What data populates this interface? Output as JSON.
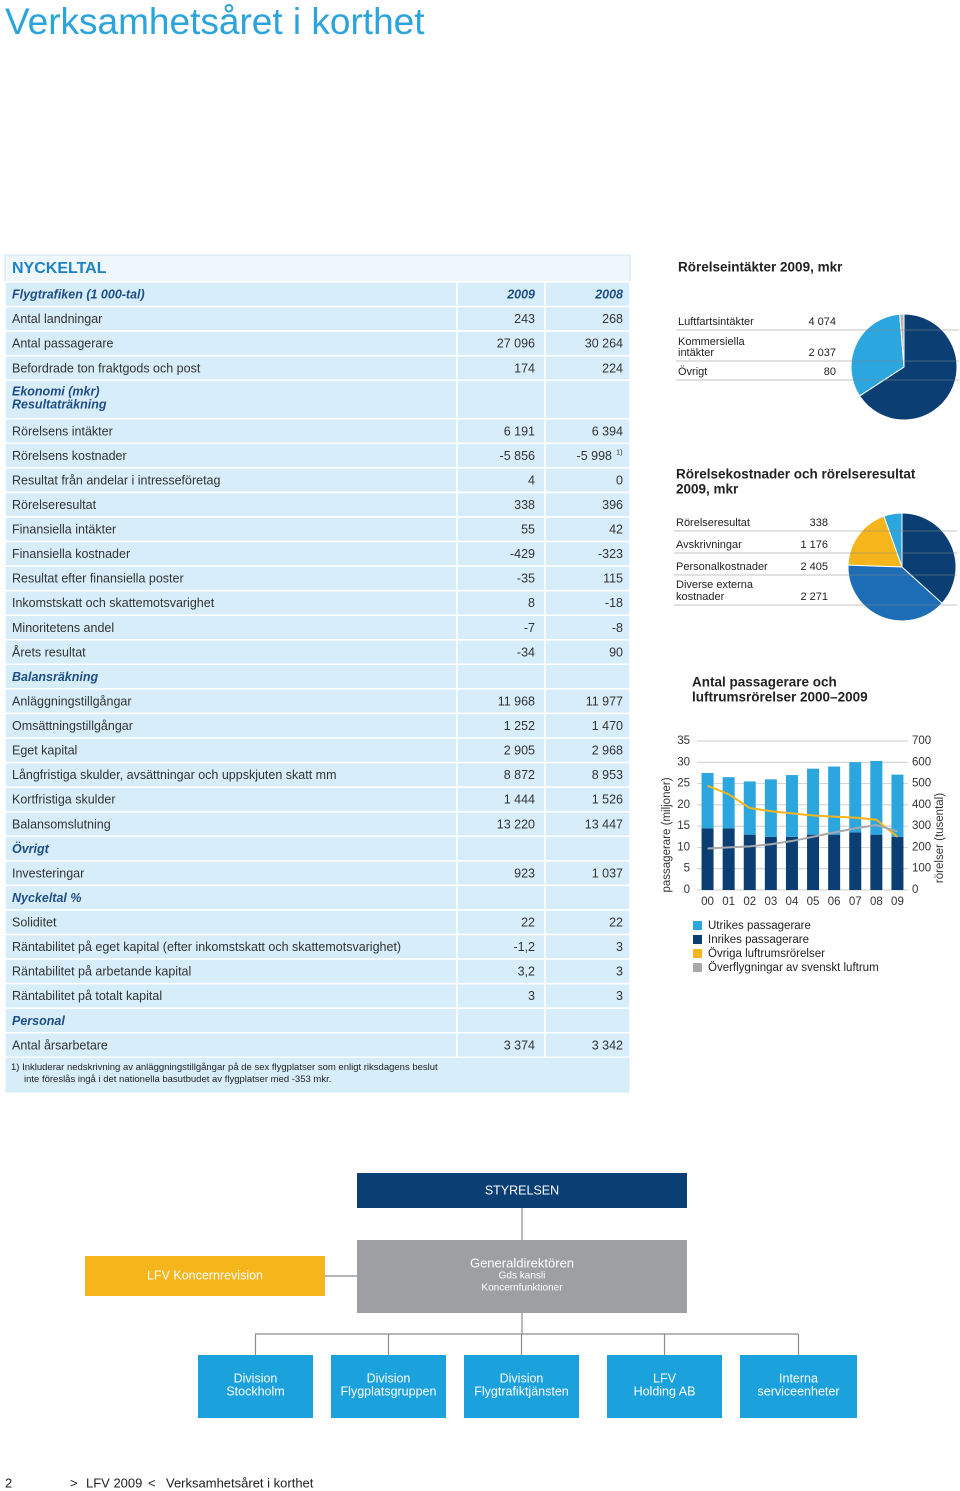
{
  "header": {
    "title": "Verksamhetsåret i korthet"
  },
  "table": {
    "title": "NYCKELTAL",
    "rows": [
      {
        "label": "Flygtrafiken (1 000-tal)",
        "style": "section",
        "cells": [
          "2009",
          "2008"
        ]
      },
      {
        "label": "Antal landningar",
        "cells": [
          "243",
          "268"
        ]
      },
      {
        "label": "Antal passagerare",
        "cells": [
          "27 096",
          "30 264"
        ]
      },
      {
        "label": "Befordrade ton fraktgods och post",
        "cells": [
          "174",
          "224"
        ]
      },
      {
        "label": [
          "Ekonomi (mkr)",
          "Resultaträkning"
        ],
        "style": "section",
        "cells": []
      },
      {
        "label": "Rörelsens intäkter",
        "cells": [
          "6 191",
          "6 394"
        ]
      },
      {
        "label": "Rörelsens kostnader",
        "cells": [
          "-5 856",
          "-5 998"
        ],
        "note": "1)"
      },
      {
        "label": "Resultat från andelar i intresseföretag",
        "cells": [
          "4",
          "0"
        ]
      },
      {
        "label": "Rörelseresultat",
        "cells": [
          "338",
          "396"
        ]
      },
      {
        "label": "Finansiella intäkter",
        "cells": [
          "55",
          "42"
        ]
      },
      {
        "label": "Finansiella kostnader",
        "cells": [
          "-429",
          "-323"
        ]
      },
      {
        "label": "Resultat efter finansiella poster",
        "cells": [
          "-35",
          "115"
        ]
      },
      {
        "label": "Inkomstskatt och skattemotsvarighet",
        "cells": [
          "8",
          "-18"
        ]
      },
      {
        "label": "Minoritetens andel",
        "cells": [
          "-7",
          "-8"
        ]
      },
      {
        "label": "Årets resultat",
        "cells": [
          "-34",
          "90"
        ]
      },
      {
        "label": "Balansräkning",
        "style": "section",
        "cells": []
      },
      {
        "label": "Anläggningstillgångar",
        "cells": [
          "11 968",
          "11 977"
        ]
      },
      {
        "label": "Omsättningstillgångar",
        "cells": [
          "1 252",
          "1 470"
        ]
      },
      {
        "label": "Eget kapital",
        "cells": [
          "2 905",
          "2 968"
        ]
      },
      {
        "label": "Långfristiga skulder, avsättningar och uppskjuten skatt mm",
        "cells": [
          "8 872",
          "8 953"
        ]
      },
      {
        "label": "Kortfristiga skulder",
        "cells": [
          "1 444",
          "1 526"
        ]
      },
      {
        "label": "Balansomslutning",
        "cells": [
          "13 220",
          "13 447"
        ]
      },
      {
        "label": "Övrigt",
        "style": "section",
        "cells": []
      },
      {
        "label": "Investeringar",
        "cells": [
          "923",
          "1 037"
        ]
      },
      {
        "label": "Nyckeltal %",
        "style": "section",
        "cells": []
      },
      {
        "label": "Soliditet",
        "cells": [
          "22",
          "22"
        ]
      },
      {
        "label": "Räntabilitet på eget kapital (efter inkomstskatt och skattemotsvarighet)",
        "cells": [
          "-1,2",
          "3"
        ]
      },
      {
        "label": "Räntabilitet på arbetande kapital",
        "cells": [
          "3,2",
          "3"
        ]
      },
      {
        "label": "Räntabilitet på totalt kapital",
        "cells": [
          "3",
          "3"
        ]
      },
      {
        "label": "Personal",
        "style": "section",
        "cells": []
      },
      {
        "label": "Antal årsarbetare",
        "cells": [
          "3 374",
          "3 342"
        ]
      }
    ],
    "footnote": [
      "1) Inkluderar nedskrivning av anläggningstillgångar på de sex flygplatser som enligt riksdagens beslut",
      "inte föreslås ingå i det nationella basutbudet av flygplatser med -353 mkr."
    ]
  },
  "chart_data": [
    {
      "type": "pie",
      "title": "Rörelseintäkter 2009, mkr",
      "categories": [
        "Luftfartsintäkter",
        [
          "Kommersiella",
          "intäkter"
        ],
        "Övrigt"
      ],
      "values": [
        4074,
        2037,
        80
      ],
      "value_labels": [
        "4 074",
        "2 037",
        "80"
      ],
      "colors": [
        "#0b3f73",
        "#2ba6de",
        "#b4b6b9"
      ]
    },
    {
      "type": "pie",
      "title": [
        "Rörelsekostnader och rörelseresultat",
        "2009, mkr"
      ],
      "categories": [
        "Rörelseresultat",
        "Avskrivningar",
        "Personalkostnader",
        [
          "Diverse externa",
          "kostnader"
        ]
      ],
      "values": [
        338,
        1176,
        2405,
        2271
      ],
      "value_labels": [
        "338",
        "1 176",
        "2 405",
        "2 271"
      ],
      "colors": [
        "#2ba6de",
        "#f5b51b",
        "#1c6db5",
        "#0b3f73"
      ]
    },
    {
      "type": "combo",
      "title": [
        "Antal passagerare och",
        "luftrumsrörelser 2000–2009"
      ],
      "categories": [
        "00",
        "01",
        "02",
        "03",
        "04",
        "05",
        "06",
        "07",
        "08",
        "09"
      ],
      "ylabel": "passagerare (miljoner)",
      "y2label": "rörelser (tusental)",
      "ylim": [
        0,
        35
      ],
      "yticks": [
        0,
        5,
        10,
        15,
        20,
        25,
        30,
        35
      ],
      "y2lim": [
        0,
        700
      ],
      "y2ticks": [
        0,
        100,
        200,
        300,
        400,
        500,
        600,
        700
      ],
      "grid": true,
      "series": [
        {
          "name": "Utrikes passagerare",
          "type": "bar",
          "color": "#2ba6de",
          "values": [
            13,
            12,
            12.5,
            13.5,
            14.5,
            15.5,
            16,
            16.5,
            17.3,
            14.6
          ]
        },
        {
          "name": "Inrikes passagerare",
          "type": "bar",
          "color": "#0b3f73",
          "values": [
            14.5,
            14.5,
            13,
            12.5,
            12.5,
            13,
            13,
            13.5,
            13,
            12.5
          ]
        },
        {
          "name": "Övriga luftrumsrörelser",
          "type": "line",
          "axis": "y2",
          "color": "#f5b51b",
          "values": [
            490,
            450,
            385,
            370,
            360,
            350,
            345,
            340,
            330,
            250
          ]
        },
        {
          "name": "Överflygningar av svenskt luftrum",
          "type": "line",
          "axis": "y2",
          "color": "#a7a9ac",
          "values": [
            195,
            200,
            205,
            215,
            230,
            250,
            270,
            290,
            305,
            275
          ]
        }
      ]
    }
  ],
  "org": {
    "board": "STYRELSEN",
    "audit": "LFV Koncernrevision",
    "ceo": [
      "Generaldirektören",
      "Gds kansli",
      "Koncernfunktioner"
    ],
    "units": [
      [
        "Division",
        "Stockholm"
      ],
      [
        "Division",
        "Flygplatsgruppen"
      ],
      [
        "Division",
        "Flygtrafiktjänsten"
      ],
      [
        "LFV",
        "Holding AB"
      ],
      [
        "Interna",
        "serviceenheter"
      ]
    ]
  },
  "footer": {
    "page": "2",
    "open": ">",
    "publication": "LFV 2009",
    "close": "<",
    "section": "Verksamhetsåret i korthet"
  }
}
